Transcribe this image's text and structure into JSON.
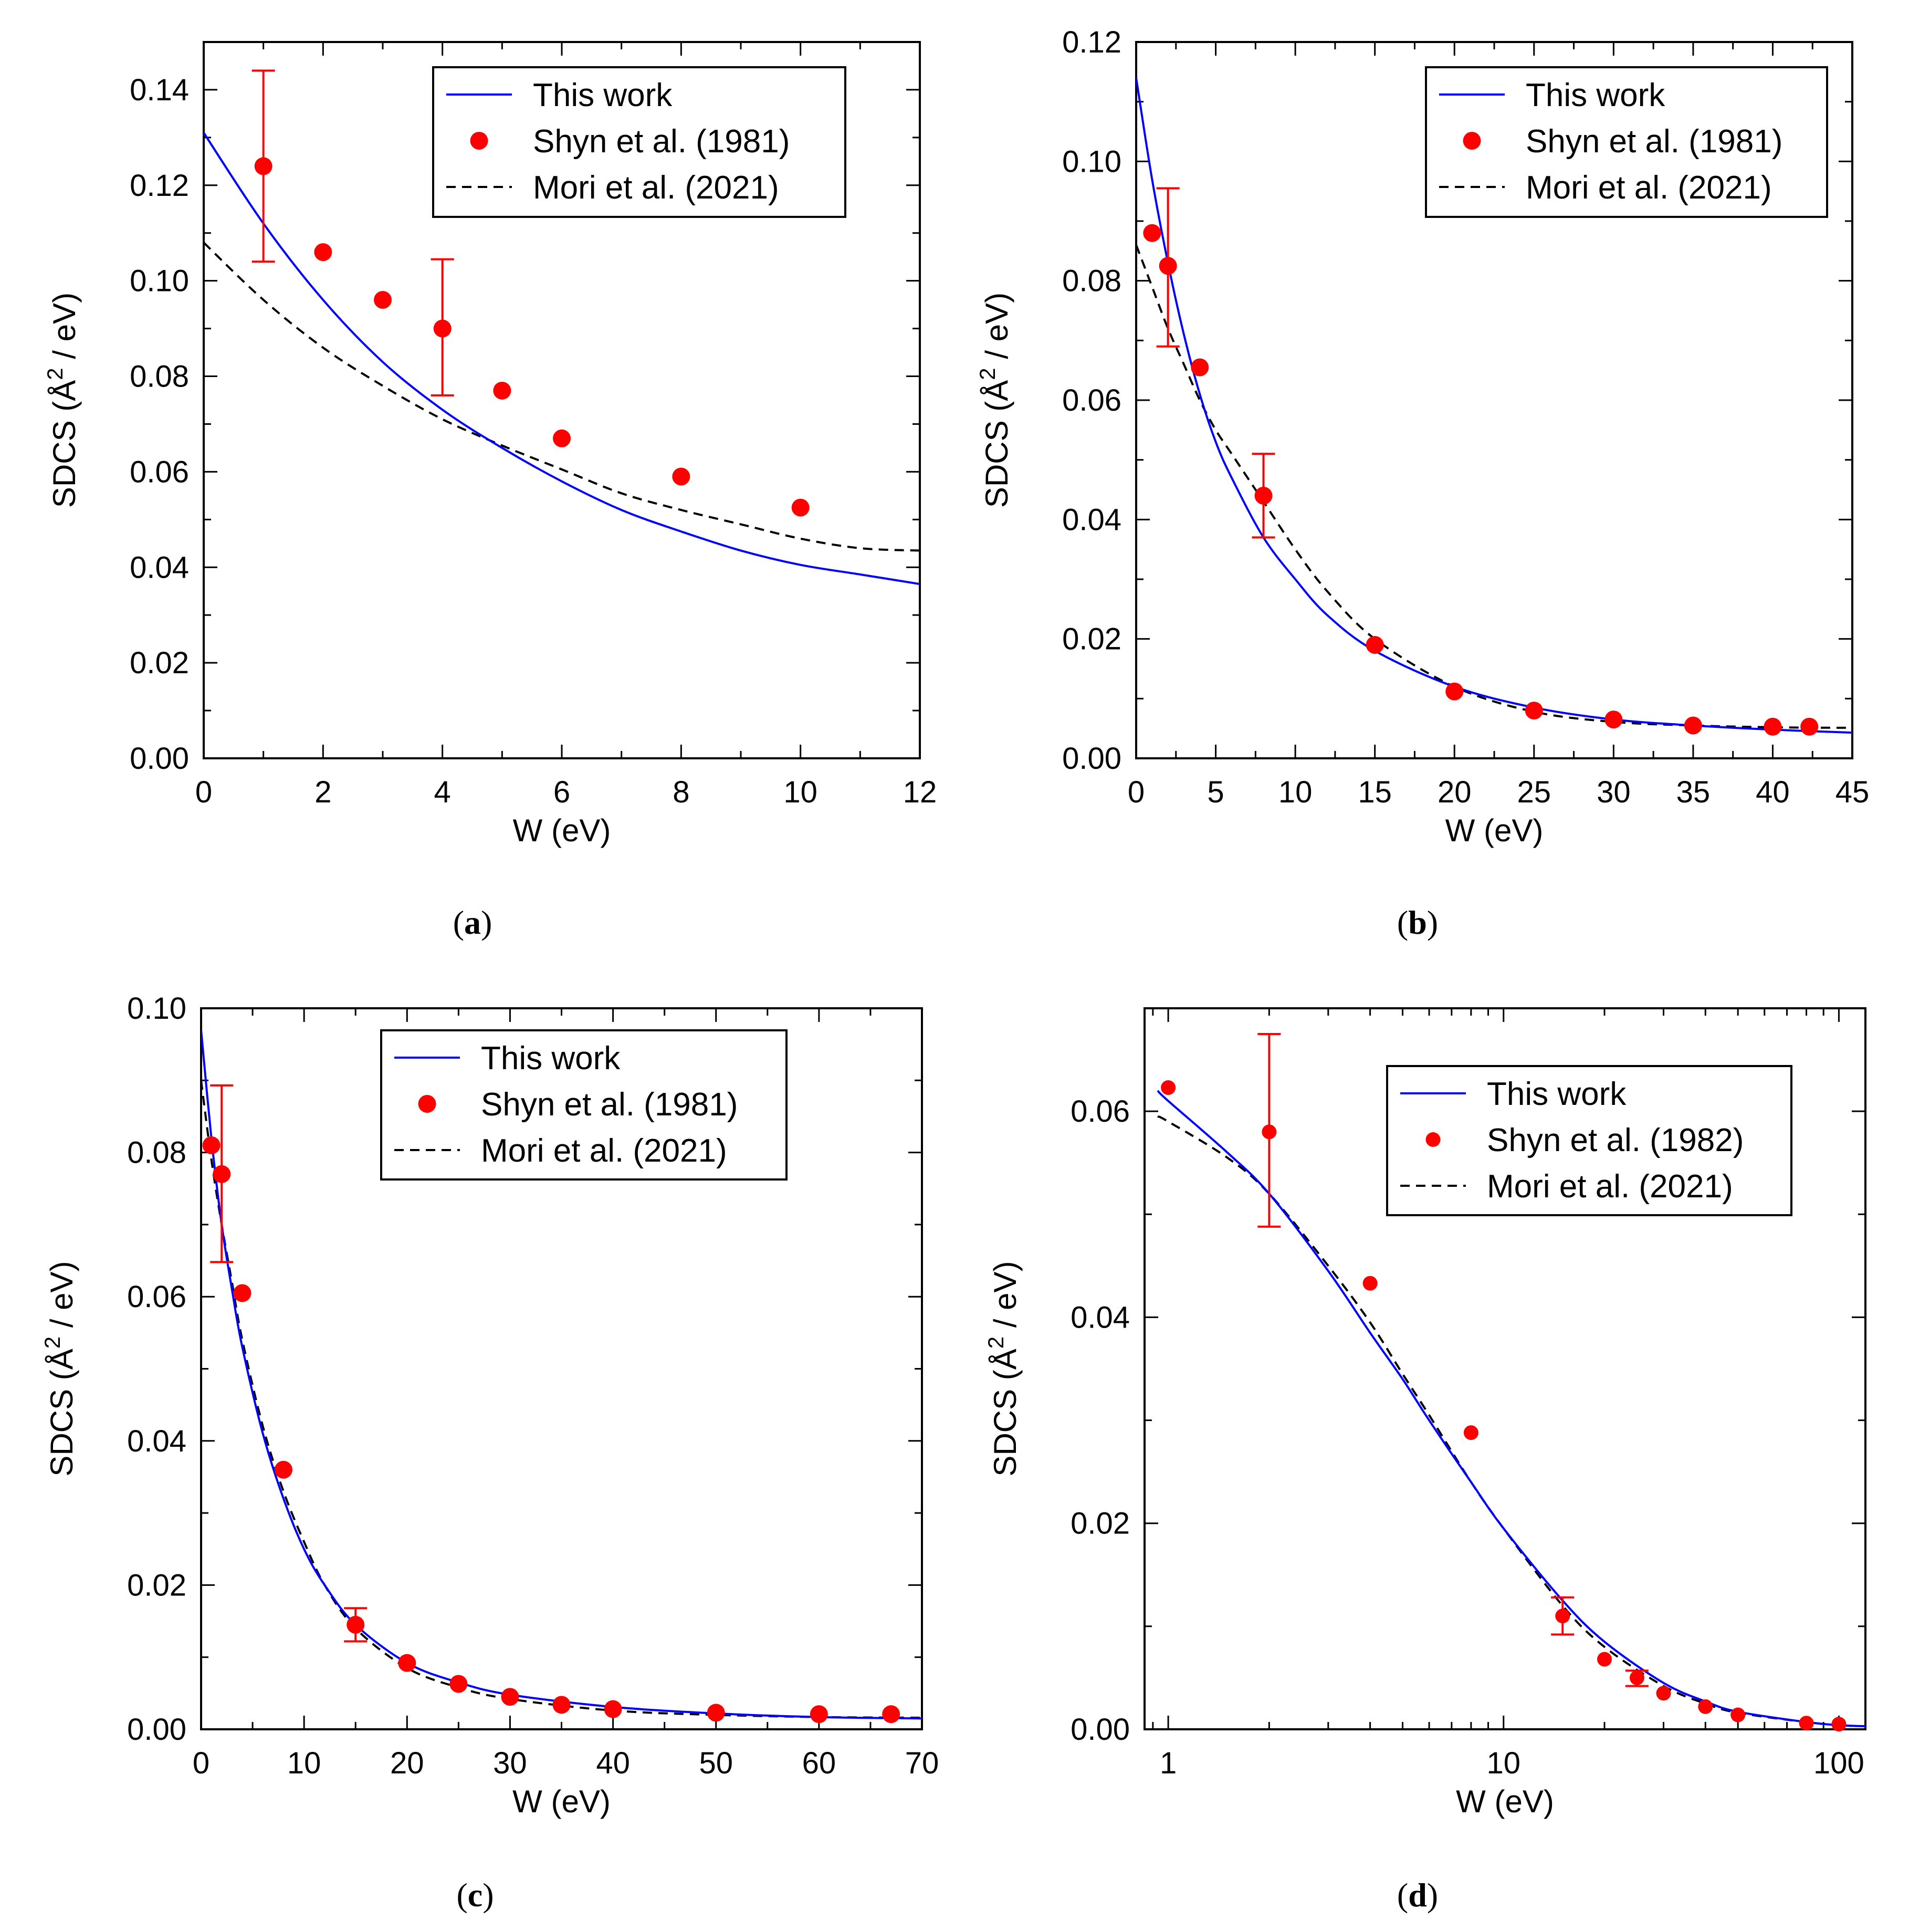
{
  "figure": {
    "panels": [
      {
        "id": "a",
        "sublabel_open": "(",
        "sublabel_letter": "a",
        "sublabel_close": ")",
        "legend": [
          "This work",
          "Shyn et al. (1981)",
          "Mori et al. (2021)"
        ],
        "ylabel": {
          "prefix": "SDCS (Å",
          "sup": "2",
          "suffix": " / eV)"
        },
        "xlabel": "W (eV)"
      },
      {
        "id": "b",
        "sublabel_open": "(",
        "sublabel_letter": "b",
        "sublabel_close": ")",
        "legend": [
          "This work",
          "Shyn et al. (1981)",
          "Mori et al. (2021)"
        ],
        "ylabel": {
          "prefix": "SDCS (Å",
          "sup": "2",
          "suffix": " / eV)"
        },
        "xlabel": "W (eV)"
      },
      {
        "id": "c",
        "sublabel_open": "(",
        "sublabel_letter": "c",
        "sublabel_close": ")",
        "legend": [
          "This work",
          "Shyn et al. (1981)",
          "Mori et al. (2021)"
        ],
        "ylabel": {
          "prefix": "SDCS (Å",
          "sup": "2",
          "suffix": " / eV)"
        },
        "xlabel": "W (eV)"
      },
      {
        "id": "d",
        "sublabel_open": "(",
        "sublabel_letter": "d",
        "sublabel_close": ")",
        "legend": [
          "This work",
          "Shyn et al. (1982)",
          "Mori et al. (2021)"
        ],
        "ylabel": {
          "prefix": "SDCS (Å",
          "sup": "2",
          "suffix": " / eV)"
        },
        "xlabel": "W (eV)"
      }
    ]
  },
  "colors": {
    "this_work": "#0000ff",
    "shyn": "#ff0000",
    "mori": "#000000",
    "axes": "#000000"
  },
  "chart_data": [
    {
      "type": "line",
      "panel": "a",
      "xscale": "linear",
      "xlim": [
        0,
        12
      ],
      "ylim": [
        0,
        0.15
      ],
      "xticks": [
        0,
        2,
        4,
        6,
        8,
        10,
        12
      ],
      "xtick_labels": [
        "0",
        "2",
        "4",
        "6",
        "8",
        "10",
        "12"
      ],
      "yticks": [
        0,
        0.02,
        0.04,
        0.06,
        0.08,
        0.1,
        0.12,
        0.14
      ],
      "ytick_labels": [
        "0.00",
        "0.02",
        "0.04",
        "0.06",
        "0.08",
        "0.10",
        "0.12",
        "0.14"
      ],
      "xlabel": "W (eV)",
      "ylabel": "SDCS (Å2 / eV)",
      "legend_position": "top-right",
      "series": [
        {
          "name": "This work",
          "style": "solid",
          "x": [
            0,
            1,
            2,
            3,
            4,
            5,
            6,
            7,
            8,
            9,
            10,
            11,
            12
          ],
          "y": [
            0.131,
            0.112,
            0.096,
            0.083,
            0.073,
            0.065,
            0.058,
            0.052,
            0.0475,
            0.0435,
            0.0405,
            0.0385,
            0.0365
          ]
        },
        {
          "name": "Shyn et al. (1981)",
          "style": "markers",
          "x": [
            1,
            2,
            3,
            4,
            5,
            6,
            8,
            10
          ],
          "y": [
            0.124,
            0.106,
            0.096,
            0.09,
            0.077,
            0.067,
            0.059,
            0.0525
          ],
          "errors": [
            [
              1,
              0.104,
              0.144
            ],
            [
              4,
              0.076,
              0.1045
            ]
          ]
        },
        {
          "name": "Mori et al. (2021)",
          "style": "dashed",
          "x": [
            0,
            1,
            2,
            3,
            4,
            5,
            6,
            7,
            8,
            9,
            10,
            11,
            12
          ],
          "y": [
            0.108,
            0.096,
            0.086,
            0.078,
            0.071,
            0.0655,
            0.0605,
            0.0555,
            0.052,
            0.049,
            0.046,
            0.044,
            0.0435
          ]
        }
      ]
    },
    {
      "type": "line",
      "panel": "b",
      "xscale": "linear",
      "xlim": [
        0,
        45
      ],
      "ylim": [
        0,
        0.12
      ],
      "xticks": [
        0,
        5,
        10,
        15,
        20,
        25,
        30,
        35,
        40,
        45
      ],
      "xtick_labels": [
        "0",
        "5",
        "10",
        "15",
        "20",
        "25",
        "30",
        "35",
        "40",
        "45"
      ],
      "yticks": [
        0,
        0.02,
        0.04,
        0.06,
        0.08,
        0.1,
        0.12
      ],
      "ytick_labels": [
        "0.00",
        "0.02",
        "0.04",
        "0.06",
        "0.08",
        "0.10",
        "0.12"
      ],
      "xlabel": "W (eV)",
      "ylabel": "SDCS (Å2 / eV)",
      "legend_position": "top-right",
      "series": [
        {
          "name": "This work",
          "style": "solid",
          "x": [
            0,
            1,
            2,
            3,
            4,
            5,
            6,
            8,
            10,
            12,
            15,
            20,
            25,
            30,
            35,
            40,
            45
          ],
          "y": [
            0.114,
            0.097,
            0.083,
            0.071,
            0.061,
            0.053,
            0.047,
            0.037,
            0.03,
            0.024,
            0.018,
            0.012,
            0.0085,
            0.0065,
            0.0055,
            0.0048,
            0.0043
          ]
        },
        {
          "name": "Shyn et al. (1981)",
          "style": "markers",
          "x": [
            1,
            2,
            4,
            8,
            15,
            20,
            25,
            30,
            35,
            40,
            42.3
          ],
          "y": [
            0.088,
            0.0825,
            0.0655,
            0.044,
            0.019,
            0.0112,
            0.008,
            0.0065,
            0.0055,
            0.0053,
            0.0053
          ],
          "errors": [
            [
              2,
              0.069,
              0.0955
            ],
            [
              8,
              0.037,
              0.051
            ]
          ]
        },
        {
          "name": "Mori et al. (2021)",
          "style": "dashed",
          "x": [
            0,
            1,
            2,
            3,
            4,
            5,
            6,
            8,
            10,
            12,
            15,
            20,
            25,
            30,
            35,
            40,
            45
          ],
          "y": [
            0.086,
            0.079,
            0.072,
            0.066,
            0.06,
            0.055,
            0.051,
            0.043,
            0.035,
            0.028,
            0.02,
            0.012,
            0.0078,
            0.0061,
            0.0055,
            0.0052,
            0.0051
          ]
        }
      ]
    },
    {
      "type": "line",
      "panel": "c",
      "xscale": "linear",
      "xlim": [
        0,
        70
      ],
      "ylim": [
        0,
        0.1
      ],
      "xticks": [
        0,
        10,
        20,
        30,
        40,
        50,
        60,
        70
      ],
      "xtick_labels": [
        "0",
        "10",
        "20",
        "30",
        "40",
        "50",
        "60",
        "70"
      ],
      "yticks": [
        0,
        0.02,
        0.04,
        0.06,
        0.08,
        0.1
      ],
      "ytick_labels": [
        "0.00",
        "0.02",
        "0.04",
        "0.06",
        "0.08",
        "0.10"
      ],
      "xlabel": "W (eV)",
      "ylabel": "SDCS (Å2 / eV)",
      "legend_position": "top-right",
      "series": [
        {
          "name": "This work",
          "style": "solid",
          "x": [
            0,
            1,
            2,
            3,
            4,
            6,
            8,
            10,
            12,
            15,
            20,
            25,
            30,
            40,
            50,
            60,
            70
          ],
          "y": [
            0.097,
            0.082,
            0.07,
            0.061,
            0.053,
            0.041,
            0.032,
            0.025,
            0.02,
            0.0145,
            0.0092,
            0.0065,
            0.0048,
            0.0031,
            0.0022,
            0.0017,
            0.0015
          ]
        },
        {
          "name": "Shyn et al. (1981)",
          "style": "markers",
          "x": [
            1,
            2,
            4,
            8,
            15,
            20,
            25,
            30,
            35,
            40,
            50,
            60,
            67
          ],
          "y": [
            0.081,
            0.077,
            0.0605,
            0.036,
            0.0145,
            0.0092,
            0.0063,
            0.0045,
            0.0034,
            0.0028,
            0.0023,
            0.0021,
            0.0021
          ],
          "errors": [
            [
              2,
              0.0648,
              0.0893
            ],
            [
              15,
              0.0122,
              0.0168
            ]
          ]
        },
        {
          "name": "Mori et al. (2021)",
          "style": "dashed",
          "x": [
            0,
            1,
            2,
            3,
            4,
            6,
            8,
            10,
            12,
            15,
            20,
            25,
            30,
            40,
            50,
            60,
            70
          ],
          "y": [
            0.09,
            0.079,
            0.07,
            0.062,
            0.054,
            0.042,
            0.033,
            0.026,
            0.02,
            0.014,
            0.0085,
            0.0058,
            0.0042,
            0.0026,
            0.002,
            0.0017,
            0.0016
          ]
        }
      ]
    },
    {
      "type": "line",
      "panel": "d",
      "xscale": "log",
      "xlim": [
        0.85,
        120
      ],
      "ylim": [
        0,
        0.07
      ],
      "xticks": [
        1,
        10,
        100
      ],
      "xtick_labels": [
        "1",
        "10",
        "100"
      ],
      "yticks": [
        0,
        0.02,
        0.04,
        0.06
      ],
      "ytick_labels": [
        "0.00",
        "0.02",
        "0.04",
        "0.06"
      ],
      "xlabel": "W (eV)",
      "ylabel": "SDCS (Å2 / eV)",
      "legend_position": "top-right",
      "series": [
        {
          "name": "This work",
          "style": "solid",
          "x": [
            0.93,
            1,
            1.5,
            2,
            3,
            4,
            5,
            6,
            8,
            10,
            15,
            20,
            30,
            40,
            50,
            80,
            100,
            120
          ],
          "y": [
            0.062,
            0.061,
            0.056,
            0.052,
            0.0445,
            0.0385,
            0.034,
            0.03,
            0.024,
            0.0195,
            0.0125,
            0.0085,
            0.0045,
            0.0027,
            0.0017,
            0.0007,
            0.0004,
            0.0003
          ]
        },
        {
          "name": "Shyn et al. (1982)",
          "style": "markers",
          "x": [
            1,
            2,
            4,
            8,
            15,
            20,
            25,
            30,
            40,
            50,
            80,
            100
          ],
          "y": [
            0.0623,
            0.058,
            0.0433,
            0.0288,
            0.011,
            0.0068,
            0.005,
            0.0035,
            0.0022,
            0.0014,
            0.0006,
            0.0005
          ],
          "errors": [
            [
              2,
              0.0488,
              0.0675
            ],
            [
              15,
              0.0092,
              0.0128
            ],
            [
              25,
              0.0042,
              0.0057
            ]
          ]
        },
        {
          "name": "Mori et al. (2021)",
          "style": "dashed",
          "x": [
            0.93,
            1,
            1.5,
            2,
            3,
            4,
            5,
            6,
            8,
            10,
            15,
            20,
            30,
            40,
            50,
            80,
            100,
            120
          ],
          "y": [
            0.0595,
            0.059,
            0.0555,
            0.052,
            0.045,
            0.0395,
            0.0345,
            0.0305,
            0.024,
            0.0195,
            0.012,
            0.008,
            0.0042,
            0.0025,
            0.0016,
            0.0007,
            0.0004,
            0.0003
          ]
        }
      ]
    }
  ]
}
